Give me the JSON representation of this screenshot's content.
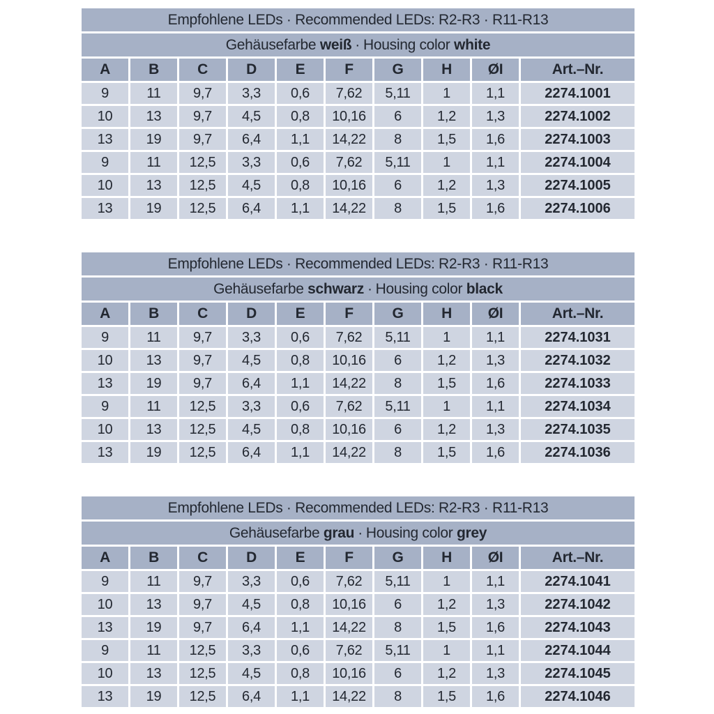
{
  "colors": {
    "header_bg": "#a6b1c6",
    "row_bg": "#cfd5e1",
    "text": "#232831",
    "background": "#ffffff"
  },
  "columns": [
    "A",
    "B",
    "C",
    "D",
    "E",
    "F",
    "G",
    "H",
    "ØI",
    "Art.–Nr."
  ],
  "tables": [
    {
      "title": "Empfohlene LEDs · Recommended LEDs: R2-R3 · R11-R13",
      "subtitle": {
        "de_label": "Gehäusefarbe",
        "de_color": "weiß",
        "separator": "·",
        "en_label": "Housing color",
        "en_color": "white"
      },
      "rows": [
        [
          "9",
          "11",
          "9,7",
          "3,3",
          "0,6",
          "7,62",
          "5,11",
          "1",
          "1,1",
          "2274.1001"
        ],
        [
          "10",
          "13",
          "9,7",
          "4,5",
          "0,8",
          "10,16",
          "6",
          "1,2",
          "1,3",
          "2274.1002"
        ],
        [
          "13",
          "19",
          "9,7",
          "6,4",
          "1,1",
          "14,22",
          "8",
          "1,5",
          "1,6",
          "2274.1003"
        ],
        [
          "9",
          "11",
          "12,5",
          "3,3",
          "0,6",
          "7,62",
          "5,11",
          "1",
          "1,1",
          "2274.1004"
        ],
        [
          "10",
          "13",
          "12,5",
          "4,5",
          "0,8",
          "10,16",
          "6",
          "1,2",
          "1,3",
          "2274.1005"
        ],
        [
          "13",
          "19",
          "12,5",
          "6,4",
          "1,1",
          "14,22",
          "8",
          "1,5",
          "1,6",
          "2274.1006"
        ]
      ]
    },
    {
      "title": "Empfohlene LEDs · Recommended LEDs: R2-R3 · R11-R13",
      "subtitle": {
        "de_label": "Gehäusefarbe",
        "de_color": "schwarz",
        "separator": "·",
        "en_label": "Housing color",
        "en_color": "black"
      },
      "rows": [
        [
          "9",
          "11",
          "9,7",
          "3,3",
          "0,6",
          "7,62",
          "5,11",
          "1",
          "1,1",
          "2274.1031"
        ],
        [
          "10",
          "13",
          "9,7",
          "4,5",
          "0,8",
          "10,16",
          "6",
          "1,2",
          "1,3",
          "2274.1032"
        ],
        [
          "13",
          "19",
          "9,7",
          "6,4",
          "1,1",
          "14,22",
          "8",
          "1,5",
          "1,6",
          "2274.1033"
        ],
        [
          "9",
          "11",
          "12,5",
          "3,3",
          "0,6",
          "7,62",
          "5,11",
          "1",
          "1,1",
          "2274.1034"
        ],
        [
          "10",
          "13",
          "12,5",
          "4,5",
          "0,8",
          "10,16",
          "6",
          "1,2",
          "1,3",
          "2274.1035"
        ],
        [
          "13",
          "19",
          "12,5",
          "6,4",
          "1,1",
          "14,22",
          "8",
          "1,5",
          "1,6",
          "2274.1036"
        ]
      ]
    },
    {
      "title": "Empfohlene LEDs · Recommended LEDs: R2-R3 · R11-R13",
      "subtitle": {
        "de_label": "Gehäusefarbe",
        "de_color": "grau",
        "separator": "·",
        "en_label": "Housing color",
        "en_color": "grey"
      },
      "rows": [
        [
          "9",
          "11",
          "9,7",
          "3,3",
          "0,6",
          "7,62",
          "5,11",
          "1",
          "1,1",
          "2274.1041"
        ],
        [
          "10",
          "13",
          "9,7",
          "4,5",
          "0,8",
          "10,16",
          "6",
          "1,2",
          "1,3",
          "2274.1042"
        ],
        [
          "13",
          "19",
          "9,7",
          "6,4",
          "1,1",
          "14,22",
          "8",
          "1,5",
          "1,6",
          "2274.1043"
        ],
        [
          "9",
          "11",
          "12,5",
          "3,3",
          "0,6",
          "7,62",
          "5,11",
          "1",
          "1,1",
          "2274.1044"
        ],
        [
          "10",
          "13",
          "12,5",
          "4,5",
          "0,8",
          "10,16",
          "6",
          "1,2",
          "1,3",
          "2274.1045"
        ],
        [
          "13",
          "19",
          "12,5",
          "6,4",
          "1,1",
          "14,22",
          "8",
          "1,5",
          "1,6",
          "2274.1046"
        ]
      ]
    }
  ]
}
